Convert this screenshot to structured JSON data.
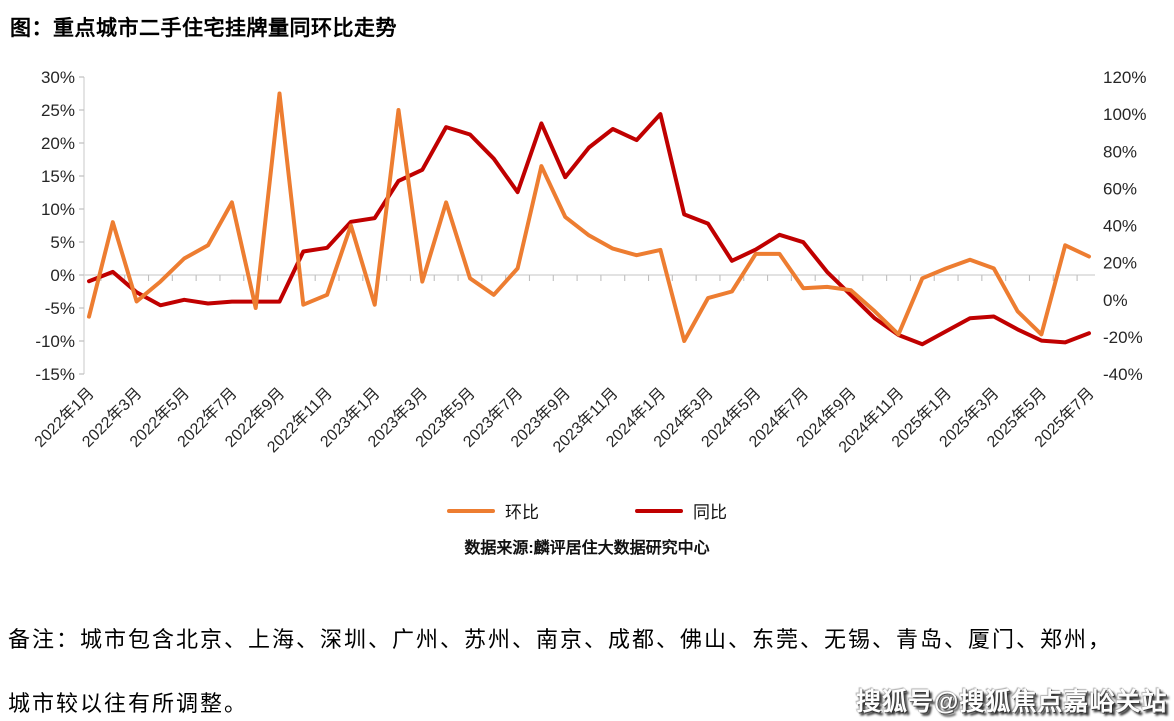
{
  "title": "图：重点城市二手住宅挂牌量同环比走势",
  "legend": {
    "items": [
      {
        "label": "环比",
        "color": "#ED7D31"
      },
      {
        "label": "同比",
        "color": "#C00000"
      }
    ]
  },
  "source": "数据来源:麟评居住大数据研究中心",
  "notes": {
    "line1": "备注：城市包含北京、上海、深圳、广州、苏州、南京、成都、佛山、东莞、无锡、青岛、厦门、郑州，",
    "line2": "城市较以往有所调整。"
  },
  "watermark": "搜狐号@搜狐焦点嘉峪关站",
  "colors": {
    "mom_line": "#ED7D31",
    "yoy_line": "#C00000",
    "axis_line": "#D9D9D9",
    "tick": "#BFBFBF",
    "axis_text": "#262626"
  },
  "chart_data": {
    "type": "line",
    "title": "重点城市二手住宅挂牌量同环比走势",
    "categories": [
      "2022年1月",
      "2022年2月",
      "2022年3月",
      "2022年4月",
      "2022年5月",
      "2022年6月",
      "2022年7月",
      "2022年8月",
      "2022年9月",
      "2022年10月",
      "2022年11月",
      "2022年12月",
      "2023年1月",
      "2023年2月",
      "2023年3月",
      "2023年4月",
      "2023年5月",
      "2023年6月",
      "2023年7月",
      "2023年8月",
      "2023年9月",
      "2023年10月",
      "2023年11月",
      "2023年12月",
      "2024年1月",
      "2024年2月",
      "2024年3月",
      "2024年4月",
      "2024年5月",
      "2024年6月",
      "2024年7月",
      "2024年8月",
      "2024年9月",
      "2024年10月",
      "2024年11月",
      "2024年12月",
      "2025年1月",
      "2025年2月",
      "2025年3月",
      "2025年4月",
      "2025年5月",
      "2025年6月",
      "2025年7月"
    ],
    "x_label_every": 2,
    "series": [
      {
        "name": "环比",
        "axis": "left",
        "color": "#ED7D31",
        "values": [
          -6.3,
          8,
          -4,
          -1,
          2.5,
          4.5,
          11,
          -5,
          27.5,
          -4.5,
          -3,
          7.5,
          -4.5,
          25,
          -1,
          11,
          -0.5,
          -3,
          1,
          16.5,
          8.8,
          6,
          4,
          3,
          3.8,
          -10,
          -3.5,
          -2.5,
          3.2,
          3.2,
          -2,
          -1.8,
          -2.3,
          -5.5,
          -9,
          -0.5,
          1,
          2.3,
          1,
          -5.5,
          -9,
          4.5,
          2.8
        ]
      },
      {
        "name": "同比",
        "axis": "right",
        "color": "#C00000",
        "values": [
          10,
          15,
          4,
          -3,
          0,
          -2,
          -1,
          -1,
          -1,
          26,
          28,
          42,
          44,
          64,
          70,
          93,
          89,
          76,
          58,
          95,
          66,
          82,
          92,
          86,
          100,
          46,
          41,
          21,
          27,
          35,
          31,
          15,
          2.5,
          -10,
          -19,
          -24,
          -17,
          -10,
          -9,
          -16,
          -22,
          -23,
          -18
        ]
      }
    ],
    "left_axis": {
      "min": -15,
      "max": 30,
      "step": 5,
      "unit": "%",
      "ticks": [
        "30%",
        "25%",
        "20%",
        "15%",
        "10%",
        "5%",
        "0%",
        "-5%",
        "-10%",
        "-15%"
      ]
    },
    "right_axis": {
      "min": -40,
      "max": 120,
      "step": 20,
      "unit": "%",
      "ticks": [
        "120%",
        "100%",
        "80%",
        "60%",
        "40%",
        "20%",
        "0%",
        "-20%",
        "-40%"
      ]
    },
    "grid": false,
    "legend_position": "bottom"
  }
}
